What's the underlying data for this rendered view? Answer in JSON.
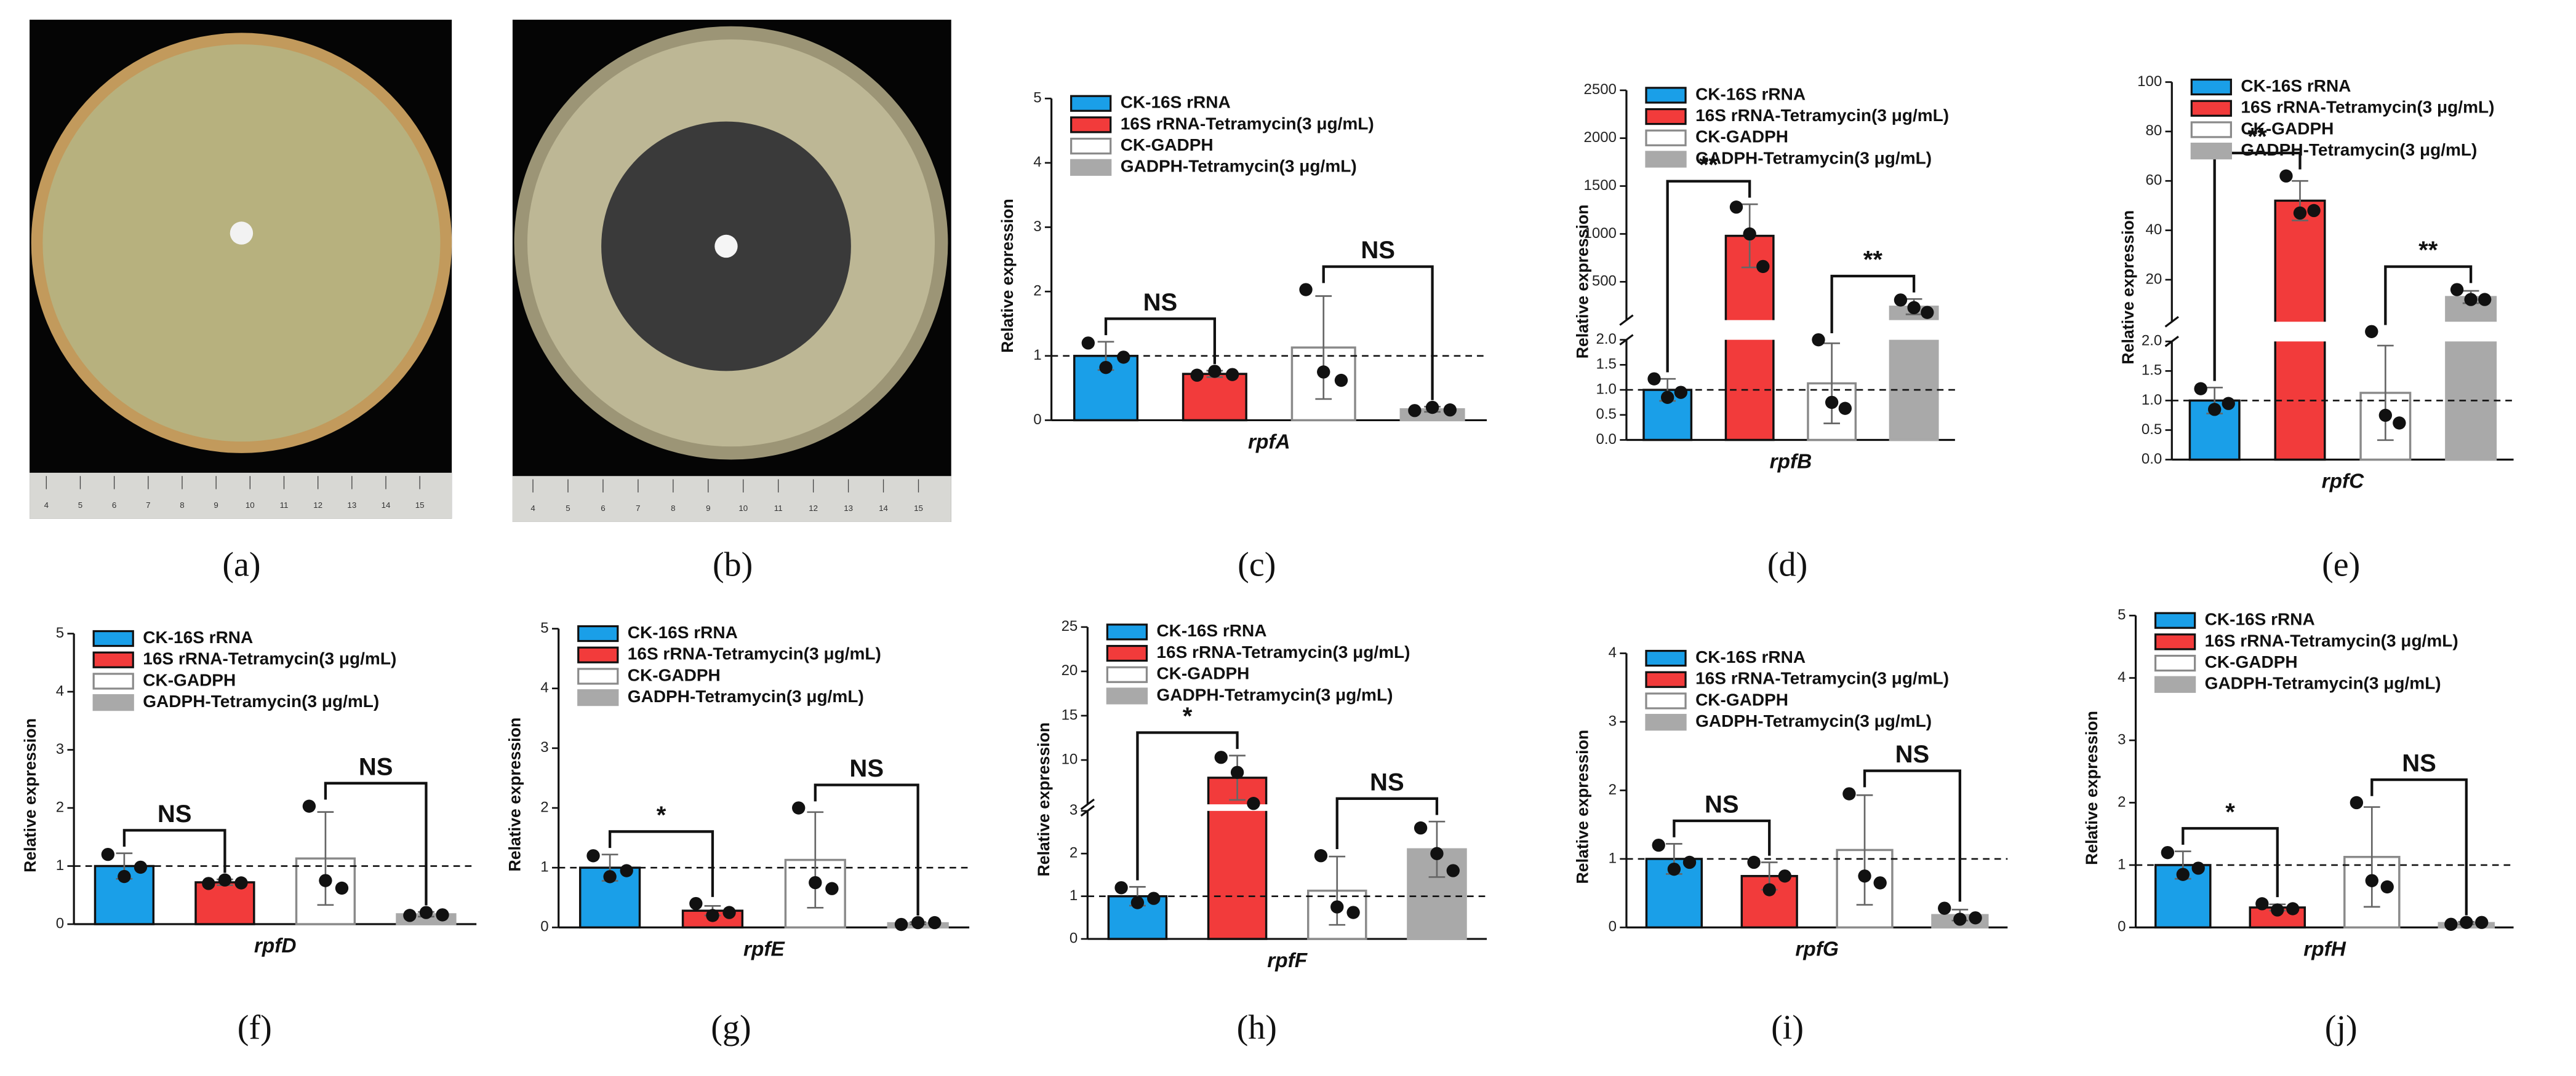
{
  "photos": [
    {
      "panel": "(a)",
      "ruler": [
        4,
        5,
        6,
        7,
        8,
        9,
        10,
        11,
        12,
        13,
        14,
        15
      ]
    },
    {
      "panel": "(b)",
      "ruler": [
        4,
        5,
        6,
        7,
        8,
        9,
        10,
        11,
        12,
        13,
        14,
        15
      ]
    }
  ],
  "chart_data": [
    {
      "type": "bar",
      "panel": "(c)",
      "xlabel": "rpfA",
      "ylabel": "Relative expression",
      "categories": [
        "CK-16S rRNA",
        "16S rRNA-Tetramycin(3 μg/mL)",
        "CK-GADPH",
        "GADPH-Tetramycin(3 μg/mL)"
      ],
      "colors": [
        "#1a9fe8",
        "#f23b3b",
        "#ffffff",
        "#a9a9a9"
      ],
      "edgecolors": [
        "#111111",
        "#111111",
        "#8a8a8a",
        "#a9a9a9"
      ],
      "values": [
        1.0,
        0.72,
        1.13,
        0.17
      ],
      "errors": [
        0.22,
        0.05,
        0.8,
        0.04
      ],
      "points": [
        [
          1.2,
          0.82,
          0.98
        ],
        [
          0.7,
          0.76,
          0.71
        ],
        [
          2.03,
          0.75,
          0.62
        ],
        [
          0.15,
          0.2,
          0.16
        ]
      ],
      "axes": [
        {
          "ylim": [
            0,
            5
          ],
          "yticks": [
            0,
            1,
            2,
            3,
            4,
            5
          ]
        }
      ],
      "reference_line": 1,
      "annotations": [
        {
          "text": "NS",
          "between": [
            0,
            1
          ]
        },
        {
          "text": "NS",
          "between": [
            2,
            3
          ]
        }
      ]
    },
    {
      "type": "bar",
      "panel": "(d)",
      "xlabel": "rpfB",
      "ylabel": "Relative expression",
      "categories": [
        "CK-16S rRNA",
        "16S rRNA-Tetramycin(3 μg/mL)",
        "CK-GADPH",
        "GADPH-Tetramycin(3 μg/mL)"
      ],
      "colors": [
        "#1a9fe8",
        "#f23b3b",
        "#ffffff",
        "#a9a9a9"
      ],
      "edgecolors": [
        "#111111",
        "#111111",
        "#8a8a8a",
        "#a9a9a9"
      ],
      "values": [
        1.0,
        980,
        1.13,
        240
      ],
      "errors": [
        0.22,
        330,
        0.8,
        80
      ],
      "points": [
        [
          1.22,
          0.85,
          0.95
        ],
        [
          1280,
          1000,
          660
        ],
        [
          2.0,
          0.75,
          0.63
        ],
        [
          310,
          230,
          180
        ]
      ],
      "axes": [
        {
          "ylim": [
            0,
            2.0
          ],
          "yticks": [
            {
              "value": 0,
              "label": "0.0"
            },
            {
              "value": 0.5,
              "label": "0.5"
            },
            {
              "value": 1,
              "label": "1.0"
            },
            {
              "value": 1.5,
              "label": "1.5"
            },
            {
              "value": 2,
              "label": "2.0"
            }
          ]
        },
        {
          "ylim": [
            100,
            2500
          ],
          "yticks": [
            500,
            1000,
            1500,
            2000,
            2500
          ]
        }
      ],
      "reference_line": 1,
      "annotations": [
        {
          "text": "**",
          "between": [
            0,
            1
          ]
        },
        {
          "text": "**",
          "between": [
            2,
            3
          ]
        }
      ]
    },
    {
      "type": "bar",
      "panel": "(e)",
      "xlabel": "rpfC",
      "ylabel": "Relative expression",
      "categories": [
        "CK-16S rRNA",
        "16S rRNA-Tetramycin(3 μg/mL)",
        "CK-GADPH",
        "GADPH-Tetramycin(3 μg/mL)"
      ],
      "colors": [
        "#1a9fe8",
        "#f23b3b",
        "#ffffff",
        "#a9a9a9"
      ],
      "edgecolors": [
        "#111111",
        "#111111",
        "#8a8a8a",
        "#a9a9a9"
      ],
      "values": [
        1.0,
        52,
        1.13,
        13
      ],
      "errors": [
        0.22,
        8,
        0.8,
        2.5
      ],
      "points": [
        [
          1.2,
          0.85,
          0.95
        ],
        [
          62,
          47,
          48
        ],
        [
          2.03,
          0.75,
          0.62
        ],
        [
          16,
          12,
          12
        ]
      ],
      "axes": [
        {
          "ylim": [
            0,
            2.0
          ],
          "yticks": [
            {
              "value": 0,
              "label": "0.0"
            },
            {
              "value": 0.5,
              "label": "0.5"
            },
            {
              "value": 1,
              "label": "1.0"
            },
            {
              "value": 1.5,
              "label": "1.5"
            },
            {
              "value": 2,
              "label": "2.0"
            }
          ]
        },
        {
          "ylim": [
            3,
            100
          ],
          "yticks": [
            20,
            40,
            60,
            80,
            100
          ]
        }
      ],
      "reference_line": 1,
      "annotations": [
        {
          "text": "**",
          "between": [
            0,
            1
          ]
        },
        {
          "text": "**",
          "between": [
            2,
            3
          ]
        }
      ]
    },
    {
      "type": "bar",
      "panel": "(f)",
      "xlabel": "rpfD",
      "ylabel": "Relative expression",
      "categories": [
        "CK-16S rRNA",
        "16S rRNA-Tetramycin(3 μg/mL)",
        "CK-GADPH",
        "GADPH-Tetramycin(3 μg/mL)"
      ],
      "colors": [
        "#1a9fe8",
        "#f23b3b",
        "#ffffff",
        "#a9a9a9"
      ],
      "edgecolors": [
        "#111111",
        "#111111",
        "#8a8a8a",
        "#a9a9a9"
      ],
      "values": [
        1.0,
        0.72,
        1.13,
        0.17
      ],
      "errors": [
        0.22,
        0.05,
        0.8,
        0.04
      ],
      "points": [
        [
          1.2,
          0.82,
          0.98
        ],
        [
          0.7,
          0.76,
          0.71
        ],
        [
          2.03,
          0.75,
          0.62
        ],
        [
          0.15,
          0.2,
          0.16
        ]
      ],
      "axes": [
        {
          "ylim": [
            0,
            5
          ],
          "yticks": [
            0,
            1,
            2,
            3,
            4,
            5
          ]
        }
      ],
      "reference_line": 1,
      "annotations": [
        {
          "text": "NS",
          "between": [
            0,
            1
          ]
        },
        {
          "text": "NS",
          "between": [
            2,
            3
          ]
        }
      ]
    },
    {
      "type": "bar",
      "panel": "(g)",
      "xlabel": "rpfE",
      "ylabel": "Relative expression",
      "categories": [
        "CK-16S rRNA",
        "16S rRNA-Tetramycin(3 μg/mL)",
        "CK-GADPH",
        "GADPH-Tetramycin(3 μg/mL)"
      ],
      "colors": [
        "#1a9fe8",
        "#f23b3b",
        "#ffffff",
        "#a9a9a9"
      ],
      "edgecolors": [
        "#111111",
        "#111111",
        "#8a8a8a",
        "#a9a9a9"
      ],
      "values": [
        1.0,
        0.28,
        1.13,
        0.07
      ],
      "errors": [
        0.22,
        0.08,
        0.8,
        0.02
      ],
      "points": [
        [
          1.2,
          0.85,
          0.95
        ],
        [
          0.4,
          0.2,
          0.25
        ],
        [
          2.0,
          0.75,
          0.65
        ],
        [
          0.05,
          0.08,
          0.08
        ]
      ],
      "axes": [
        {
          "ylim": [
            0,
            5
          ],
          "yticks": [
            0,
            1,
            2,
            3,
            4,
            5
          ]
        }
      ],
      "reference_line": 1,
      "annotations": [
        {
          "text": "*",
          "between": [
            0,
            1
          ]
        },
        {
          "text": "NS",
          "between": [
            2,
            3
          ]
        }
      ]
    },
    {
      "type": "bar",
      "panel": "(h)",
      "xlabel": "rpfF",
      "ylabel": "Relative expression",
      "categories": [
        "CK-16S rRNA",
        "16S rRNA-Tetramycin(3 μg/mL)",
        "CK-GADPH",
        "GADPH-Tetramycin(3 μg/mL)"
      ],
      "colors": [
        "#1a9fe8",
        "#f23b3b",
        "#ffffff",
        "#a9a9a9"
      ],
      "edgecolors": [
        "#111111",
        "#111111",
        "#8a8a8a",
        "#a9a9a9"
      ],
      "values": [
        1.0,
        8,
        1.13,
        2.1
      ],
      "errors": [
        0.22,
        2.5,
        0.8,
        0.65
      ],
      "points": [
        [
          1.2,
          0.85,
          0.95
        ],
        [
          10.3,
          8.6,
          5.1
        ],
        [
          1.95,
          0.75,
          0.62
        ],
        [
          2.6,
          2.0,
          1.6
        ]
      ],
      "axes": [
        {
          "ylim": [
            0,
            3
          ],
          "yticks": [
            0,
            1,
            2,
            3
          ]
        },
        {
          "ylim": [
            5,
            25
          ],
          "yticks": [
            10,
            15,
            20,
            25
          ]
        }
      ],
      "reference_line": 1,
      "annotations": [
        {
          "text": "*",
          "between": [
            0,
            1
          ]
        },
        {
          "text": "NS",
          "between": [
            2,
            3
          ]
        }
      ]
    },
    {
      "type": "bar",
      "panel": "(i)",
      "xlabel": "rpfG",
      "ylabel": "Relative expression",
      "categories": [
        "CK-16S rRNA",
        "16S rRNA-Tetramycin(3 μg/mL)",
        "CK-GADPH",
        "GADPH-Tetramycin(3 μg/mL)"
      ],
      "colors": [
        "#1a9fe8",
        "#f23b3b",
        "#ffffff",
        "#a9a9a9"
      ],
      "edgecolors": [
        "#111111",
        "#111111",
        "#8a8a8a",
        "#a9a9a9"
      ],
      "values": [
        1.0,
        0.75,
        1.13,
        0.18
      ],
      "errors": [
        0.22,
        0.2,
        0.8,
        0.08
      ],
      "points": [
        [
          1.2,
          0.85,
          0.95
        ],
        [
          0.95,
          0.55,
          0.75
        ],
        [
          1.95,
          0.75,
          0.65
        ],
        [
          0.28,
          0.12,
          0.14
        ]
      ],
      "axes": [
        {
          "ylim": [
            0,
            4
          ],
          "yticks": [
            0,
            1,
            2,
            3,
            4
          ]
        }
      ],
      "reference_line": 1,
      "annotations": [
        {
          "text": "NS",
          "between": [
            0,
            1
          ]
        },
        {
          "text": "NS",
          "between": [
            2,
            3
          ]
        }
      ]
    },
    {
      "type": "bar",
      "panel": "(j)",
      "xlabel": "rpfH",
      "ylabel": "Relative expression",
      "categories": [
        "CK-16S rRNA",
        "16S rRNA-Tetramycin(3 μg/mL)",
        "CK-GADPH",
        "GADPH-Tetramycin(3 μg/mL)"
      ],
      "colors": [
        "#1a9fe8",
        "#f23b3b",
        "#ffffff",
        "#a9a9a9"
      ],
      "edgecolors": [
        "#111111",
        "#111111",
        "#8a8a8a",
        "#a9a9a9"
      ],
      "values": [
        1.0,
        0.32,
        1.13,
        0.07
      ],
      "errors": [
        0.22,
        0.05,
        0.8,
        0.02
      ],
      "points": [
        [
          1.2,
          0.85,
          0.95
        ],
        [
          0.38,
          0.28,
          0.3
        ],
        [
          2.0,
          0.75,
          0.65
        ],
        [
          0.05,
          0.08,
          0.08
        ]
      ],
      "axes": [
        {
          "ylim": [
            0,
            5
          ],
          "yticks": [
            0,
            1,
            2,
            3,
            4,
            5
          ]
        }
      ],
      "reference_line": 1,
      "annotations": [
        {
          "text": "*",
          "between": [
            0,
            1
          ]
        },
        {
          "text": "NS",
          "between": [
            2,
            3
          ]
        }
      ]
    }
  ]
}
